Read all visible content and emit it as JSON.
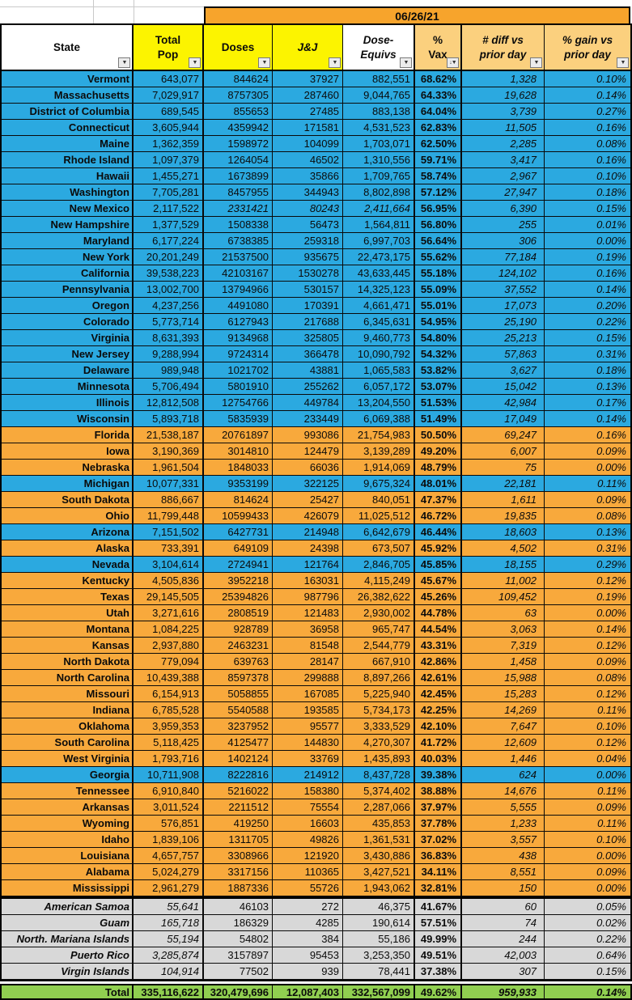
{
  "banner": {
    "date": "06/26/21"
  },
  "columns": [
    {
      "key": "state",
      "label": "State"
    },
    {
      "key": "pop",
      "label": "Total\nPop"
    },
    {
      "key": "doses",
      "label": "Doses"
    },
    {
      "key": "jj",
      "label": "J&J"
    },
    {
      "key": "equivs",
      "label": "Dose-\nEquivs"
    },
    {
      "key": "vax",
      "label": "%\nVax"
    },
    {
      "key": "diff",
      "label": "# diff vs\nprior day"
    },
    {
      "key": "gain",
      "label": "% gain vs\nprior day"
    }
  ],
  "icons": {
    "filter": "filter-dropdown-icon",
    "sort_filter": "filter-sort-descending-icon"
  },
  "colors": {
    "blue_row": "#2BA9E0",
    "orange_row": "#F8A93C",
    "banner_orange": "#F7A42C",
    "yellow_header": "#FCF400",
    "tan_header": "#FBD07E",
    "territory_gray": "#D8D8D8",
    "total_green": "#90CF50"
  },
  "rows": [
    {
      "state": "Vermont",
      "pop": "643,077",
      "doses": "844624",
      "jj": "37927",
      "equivs": "882,551",
      "vax": "68.62%",
      "diff": "1,328",
      "gain": "0.10%",
      "hl": "blue"
    },
    {
      "state": "Massachusetts",
      "pop": "7,029,917",
      "doses": "8757305",
      "jj": "287460",
      "equivs": "9,044,765",
      "vax": "64.33%",
      "diff": "19,628",
      "gain": "0.14%",
      "hl": "blue"
    },
    {
      "state": "District of Columbia",
      "pop": "689,545",
      "doses": "855653",
      "jj": "27485",
      "equivs": "883,138",
      "vax": "64.04%",
      "diff": "3,739",
      "gain": "0.27%",
      "hl": "blue"
    },
    {
      "state": "Connecticut",
      "pop": "3,605,944",
      "doses": "4359942",
      "jj": "171581",
      "equivs": "4,531,523",
      "vax": "62.83%",
      "diff": "11,505",
      "gain": "0.16%",
      "hl": "blue"
    },
    {
      "state": "Maine",
      "pop": "1,362,359",
      "doses": "1598972",
      "jj": "104099",
      "equivs": "1,703,071",
      "vax": "62.50%",
      "diff": "2,285",
      "gain": "0.08%",
      "hl": "blue"
    },
    {
      "state": "Rhode Island",
      "pop": "1,097,379",
      "doses": "1264054",
      "jj": "46502",
      "equivs": "1,310,556",
      "vax": "59.71%",
      "diff": "3,417",
      "gain": "0.16%",
      "hl": "blue"
    },
    {
      "state": "Hawaii",
      "pop": "1,455,271",
      "doses": "1673899",
      "jj": "35866",
      "equivs": "1,709,765",
      "vax": "58.74%",
      "diff": "2,967",
      "gain": "0.10%",
      "hl": "blue"
    },
    {
      "state": "Washington",
      "pop": "7,705,281",
      "doses": "8457955",
      "jj": "344943",
      "equivs": "8,802,898",
      "vax": "57.12%",
      "diff": "27,947",
      "gain": "0.18%",
      "hl": "blue"
    },
    {
      "state": "New Mexico",
      "pop": "2,117,522",
      "doses": "2331421",
      "jj": "80243",
      "equivs": "2,411,664",
      "vax": "56.95%",
      "diff": "6,390",
      "gain": "0.15%",
      "hl": "blue",
      "mid_italic": true
    },
    {
      "state": "New Hampshire",
      "pop": "1,377,529",
      "doses": "1508338",
      "jj": "56473",
      "equivs": "1,564,811",
      "vax": "56.80%",
      "diff": "255",
      "gain": "0.01%",
      "hl": "blue"
    },
    {
      "state": "Maryland",
      "pop": "6,177,224",
      "doses": "6738385",
      "jj": "259318",
      "equivs": "6,997,703",
      "vax": "56.64%",
      "diff": "306",
      "gain": "0.00%",
      "hl": "blue"
    },
    {
      "state": "New York",
      "pop": "20,201,249",
      "doses": "21537500",
      "jj": "935675",
      "equivs": "22,473,175",
      "vax": "55.62%",
      "diff": "77,184",
      "gain": "0.19%",
      "hl": "blue"
    },
    {
      "state": "California",
      "pop": "39,538,223",
      "doses": "42103167",
      "jj": "1530278",
      "equivs": "43,633,445",
      "vax": "55.18%",
      "diff": "124,102",
      "gain": "0.16%",
      "hl": "blue"
    },
    {
      "state": "Pennsylvania",
      "pop": "13,002,700",
      "doses": "13794966",
      "jj": "530157",
      "equivs": "14,325,123",
      "vax": "55.09%",
      "diff": "37,552",
      "gain": "0.14%",
      "hl": "blue"
    },
    {
      "state": "Oregon",
      "pop": "4,237,256",
      "doses": "4491080",
      "jj": "170391",
      "equivs": "4,661,471",
      "vax": "55.01%",
      "diff": "17,073",
      "gain": "0.20%",
      "hl": "blue"
    },
    {
      "state": "Colorado",
      "pop": "5,773,714",
      "doses": "6127943",
      "jj": "217688",
      "equivs": "6,345,631",
      "vax": "54.95%",
      "diff": "25,190",
      "gain": "0.22%",
      "hl": "blue"
    },
    {
      "state": "Virginia",
      "pop": "8,631,393",
      "doses": "9134968",
      "jj": "325805",
      "equivs": "9,460,773",
      "vax": "54.80%",
      "diff": "25,213",
      "gain": "0.15%",
      "hl": "blue"
    },
    {
      "state": "New Jersey",
      "pop": "9,288,994",
      "doses": "9724314",
      "jj": "366478",
      "equivs": "10,090,792",
      "vax": "54.32%",
      "diff": "57,863",
      "gain": "0.31%",
      "hl": "blue"
    },
    {
      "state": "Delaware",
      "pop": "989,948",
      "doses": "1021702",
      "jj": "43881",
      "equivs": "1,065,583",
      "vax": "53.82%",
      "diff": "3,627",
      "gain": "0.18%",
      "hl": "blue"
    },
    {
      "state": "Minnesota",
      "pop": "5,706,494",
      "doses": "5801910",
      "jj": "255262",
      "equivs": "6,057,172",
      "vax": "53.07%",
      "diff": "15,042",
      "gain": "0.13%",
      "hl": "blue"
    },
    {
      "state": "Illinois",
      "pop": "12,812,508",
      "doses": "12754766",
      "jj": "449784",
      "equivs": "13,204,550",
      "vax": "51.53%",
      "diff": "42,984",
      "gain": "0.17%",
      "hl": "blue"
    },
    {
      "state": "Wisconsin",
      "pop": "5,893,718",
      "doses": "5835939",
      "jj": "233449",
      "equivs": "6,069,388",
      "vax": "51.49%",
      "diff": "17,049",
      "gain": "0.14%",
      "hl": "blue"
    },
    {
      "state": "Florida",
      "pop": "21,538,187",
      "doses": "20761897",
      "jj": "993086",
      "equivs": "21,754,983",
      "vax": "50.50%",
      "diff": "69,247",
      "gain": "0.16%",
      "hl": "orange"
    },
    {
      "state": "Iowa",
      "pop": "3,190,369",
      "doses": "3014810",
      "jj": "124479",
      "equivs": "3,139,289",
      "vax": "49.20%",
      "diff": "6,007",
      "gain": "0.09%",
      "hl": "orange"
    },
    {
      "state": "Nebraska",
      "pop": "1,961,504",
      "doses": "1848033",
      "jj": "66036",
      "equivs": "1,914,069",
      "vax": "48.79%",
      "diff": "75",
      "gain": "0.00%",
      "hl": "orange"
    },
    {
      "state": "Michigan",
      "pop": "10,077,331",
      "doses": "9353199",
      "jj": "322125",
      "equivs": "9,675,324",
      "vax": "48.01%",
      "diff": "22,181",
      "gain": "0.11%",
      "hl": "blue"
    },
    {
      "state": "South Dakota",
      "pop": "886,667",
      "doses": "814624",
      "jj": "25427",
      "equivs": "840,051",
      "vax": "47.37%",
      "diff": "1,611",
      "gain": "0.09%",
      "hl": "orange"
    },
    {
      "state": "Ohio",
      "pop": "11,799,448",
      "doses": "10599433",
      "jj": "426079",
      "equivs": "11,025,512",
      "vax": "46.72%",
      "diff": "19,835",
      "gain": "0.08%",
      "hl": "orange"
    },
    {
      "state": "Arizona",
      "pop": "7,151,502",
      "doses": "6427731",
      "jj": "214948",
      "equivs": "6,642,679",
      "vax": "46.44%",
      "diff": "18,603",
      "gain": "0.13%",
      "hl": "blue"
    },
    {
      "state": "Alaska",
      "pop": "733,391",
      "doses": "649109",
      "jj": "24398",
      "equivs": "673,507",
      "vax": "45.92%",
      "diff": "4,502",
      "gain": "0.31%",
      "hl": "orange"
    },
    {
      "state": "Nevada",
      "pop": "3,104,614",
      "doses": "2724941",
      "jj": "121764",
      "equivs": "2,846,705",
      "vax": "45.85%",
      "diff": "18,155",
      "gain": "0.29%",
      "hl": "blue"
    },
    {
      "state": "Kentucky",
      "pop": "4,505,836",
      "doses": "3952218",
      "jj": "163031",
      "equivs": "4,115,249",
      "vax": "45.67%",
      "diff": "11,002",
      "gain": "0.12%",
      "hl": "orange"
    },
    {
      "state": "Texas",
      "pop": "29,145,505",
      "doses": "25394826",
      "jj": "987796",
      "equivs": "26,382,622",
      "vax": "45.26%",
      "diff": "109,452",
      "gain": "0.19%",
      "hl": "orange"
    },
    {
      "state": "Utah",
      "pop": "3,271,616",
      "doses": "2808519",
      "jj": "121483",
      "equivs": "2,930,002",
      "vax": "44.78%",
      "diff": "63",
      "gain": "0.00%",
      "hl": "orange"
    },
    {
      "state": "Montana",
      "pop": "1,084,225",
      "doses": "928789",
      "jj": "36958",
      "equivs": "965,747",
      "vax": "44.54%",
      "diff": "3,063",
      "gain": "0.14%",
      "hl": "orange"
    },
    {
      "state": "Kansas",
      "pop": "2,937,880",
      "doses": "2463231",
      "jj": "81548",
      "equivs": "2,544,779",
      "vax": "43.31%",
      "diff": "7,319",
      "gain": "0.12%",
      "hl": "orange"
    },
    {
      "state": "North Dakota",
      "pop": "779,094",
      "doses": "639763",
      "jj": "28147",
      "equivs": "667,910",
      "vax": "42.86%",
      "diff": "1,458",
      "gain": "0.09%",
      "hl": "orange"
    },
    {
      "state": "North Carolina",
      "pop": "10,439,388",
      "doses": "8597378",
      "jj": "299888",
      "equivs": "8,897,266",
      "vax": "42.61%",
      "diff": "15,988",
      "gain": "0.08%",
      "hl": "orange"
    },
    {
      "state": "Missouri",
      "pop": "6,154,913",
      "doses": "5058855",
      "jj": "167085",
      "equivs": "5,225,940",
      "vax": "42.45%",
      "diff": "15,283",
      "gain": "0.12%",
      "hl": "orange"
    },
    {
      "state": "Indiana",
      "pop": "6,785,528",
      "doses": "5540588",
      "jj": "193585",
      "equivs": "5,734,173",
      "vax": "42.25%",
      "diff": "14,269",
      "gain": "0.11%",
      "hl": "orange"
    },
    {
      "state": "Oklahoma",
      "pop": "3,959,353",
      "doses": "3237952",
      "jj": "95577",
      "equivs": "3,333,529",
      "vax": "42.10%",
      "diff": "7,647",
      "gain": "0.10%",
      "hl": "orange"
    },
    {
      "state": "South Carolina",
      "pop": "5,118,425",
      "doses": "4125477",
      "jj": "144830",
      "equivs": "4,270,307",
      "vax": "41.72%",
      "diff": "12,609",
      "gain": "0.12%",
      "hl": "orange"
    },
    {
      "state": "West Virginia",
      "pop": "1,793,716",
      "doses": "1402124",
      "jj": "33769",
      "equivs": "1,435,893",
      "vax": "40.03%",
      "diff": "1,446",
      "gain": "0.04%",
      "hl": "orange"
    },
    {
      "state": "Georgia",
      "pop": "10,711,908",
      "doses": "8222816",
      "jj": "214912",
      "equivs": "8,437,728",
      "vax": "39.38%",
      "diff": "624",
      "gain": "0.00%",
      "hl": "blue"
    },
    {
      "state": "Tennessee",
      "pop": "6,910,840",
      "doses": "5216022",
      "jj": "158380",
      "equivs": "5,374,402",
      "vax": "38.88%",
      "diff": "14,676",
      "gain": "0.11%",
      "hl": "orange"
    },
    {
      "state": "Arkansas",
      "pop": "3,011,524",
      "doses": "2211512",
      "jj": "75554",
      "equivs": "2,287,066",
      "vax": "37.97%",
      "diff": "5,555",
      "gain": "0.09%",
      "hl": "orange"
    },
    {
      "state": "Wyoming",
      "pop": "576,851",
      "doses": "419250",
      "jj": "16603",
      "equivs": "435,853",
      "vax": "37.78%",
      "diff": "1,233",
      "gain": "0.11%",
      "hl": "orange"
    },
    {
      "state": "Idaho",
      "pop": "1,839,106",
      "doses": "1311705",
      "jj": "49826",
      "equivs": "1,361,531",
      "vax": "37.02%",
      "diff": "3,557",
      "gain": "0.10%",
      "hl": "orange"
    },
    {
      "state": "Louisiana",
      "pop": "4,657,757",
      "doses": "3308966",
      "jj": "121920",
      "equivs": "3,430,886",
      "vax": "36.83%",
      "diff": "438",
      "gain": "0.00%",
      "hl": "orange"
    },
    {
      "state": "Alabama",
      "pop": "5,024,279",
      "doses": "3317156",
      "jj": "110365",
      "equivs": "3,427,521",
      "vax": "34.11%",
      "diff": "8,551",
      "gain": "0.09%",
      "hl": "orange"
    },
    {
      "state": "Mississippi",
      "pop": "2,961,279",
      "doses": "1887336",
      "jj": "55726",
      "equivs": "1,943,062",
      "vax": "32.81%",
      "diff": "150",
      "gain": "0.00%",
      "hl": "orange"
    }
  ],
  "territories": [
    {
      "state": "American Samoa",
      "pop": "55,641",
      "doses": "46103",
      "jj": "272",
      "equivs": "46,375",
      "vax": "41.67%",
      "diff": "60",
      "gain": "0.05%"
    },
    {
      "state": "Guam",
      "pop": "165,718",
      "doses": "186329",
      "jj": "4285",
      "equivs": "190,614",
      "vax": "57.51%",
      "diff": "74",
      "gain": "0.02%"
    },
    {
      "state": "North. Mariana Islands",
      "pop": "55,194",
      "doses": "54802",
      "jj": "384",
      "equivs": "55,186",
      "vax": "49.99%",
      "diff": "244",
      "gain": "0.22%"
    },
    {
      "state": "Puerto Rico",
      "pop": "3,285,874",
      "doses": "3157897",
      "jj": "95453",
      "equivs": "3,253,350",
      "vax": "49.51%",
      "diff": "42,003",
      "gain": "0.64%"
    },
    {
      "state": "Virgin Islands",
      "pop": "104,914",
      "doses": "77502",
      "jj": "939",
      "equivs": "78,441",
      "vax": "37.38%",
      "diff": "307",
      "gain": "0.15%"
    }
  ],
  "total": {
    "state": "Total",
    "pop": "335,116,622",
    "doses": "320,479,696",
    "jj": "12,087,403",
    "equivs": "332,567,099",
    "vax": "49.62%",
    "diff": "959,933",
    "gain": "0.14%"
  }
}
